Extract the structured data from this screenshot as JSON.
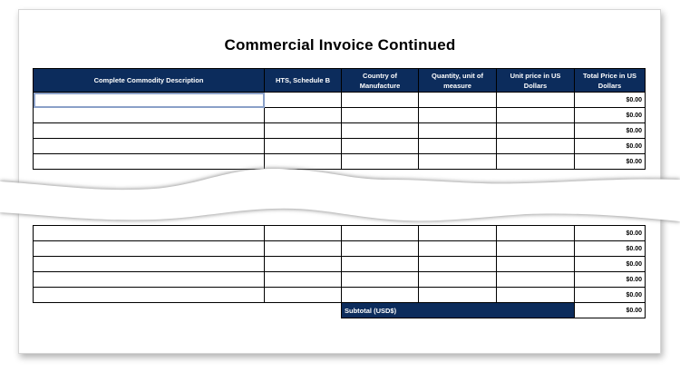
{
  "title": "Commercial Invoice Continued",
  "columns": [
    "Complete Commodity Description",
    "HTS, Schedule B",
    "Country of Manufacture",
    "Quantity, unit of measure",
    "Unit price in US Dollars",
    "Total Price in US Dollars"
  ],
  "row_total": "$0.00",
  "top_row_count": 5,
  "bottom_row_count": 5,
  "subtotal": {
    "label": "Subtotal (USD$)",
    "value": "$0.00"
  },
  "colors": {
    "header_bg": "#0c2c5c",
    "header_text": "#ffffff"
  }
}
